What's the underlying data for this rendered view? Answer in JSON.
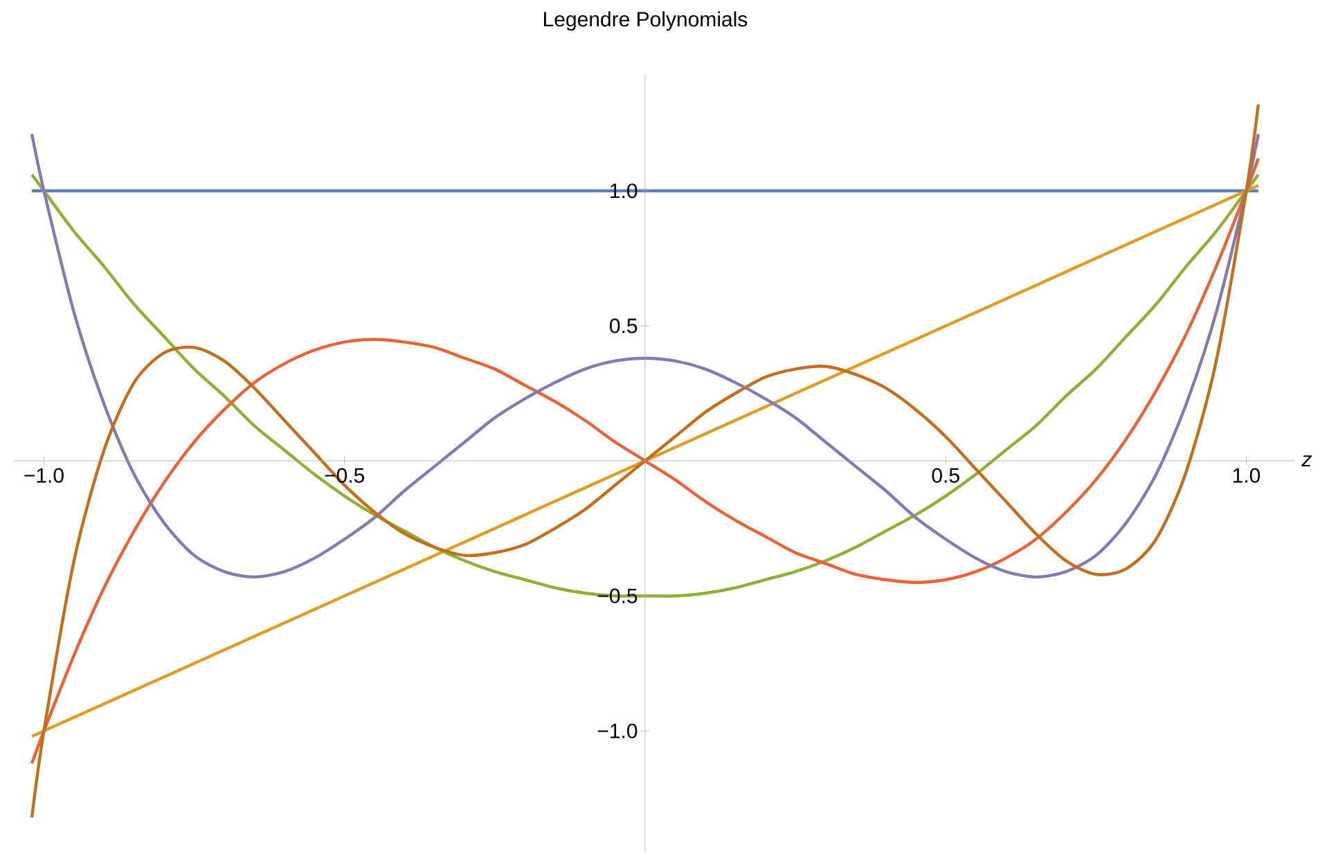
{
  "chart_data": {
    "type": "line",
    "title": "Legendre Polynomials",
    "xlabel": "z",
    "x": [
      -1.02,
      -1,
      -0.95,
      -0.9,
      -0.85,
      -0.8,
      -0.75,
      -0.7,
      -0.65,
      -0.6,
      -0.55,
      -0.5,
      -0.45,
      -0.4,
      -0.35,
      -0.3,
      -0.25,
      -0.2,
      -0.15,
      -0.1,
      -0.05,
      0,
      0.05,
      0.1,
      0.15,
      0.2,
      0.25,
      0.3,
      0.35,
      0.4,
      0.45,
      0.5,
      0.55,
      0.6,
      0.65,
      0.7,
      0.75,
      0.8,
      0.85,
      0.9,
      0.95,
      1,
      1.02
    ],
    "series": [
      {
        "color": "#5e81b5",
        "values": [
          1,
          1,
          1,
          1,
          1,
          1,
          1,
          1,
          1,
          1,
          1,
          1,
          1,
          1,
          1,
          1,
          1,
          1,
          1,
          1,
          1,
          1,
          1,
          1,
          1,
          1,
          1,
          1,
          1,
          1,
          1,
          1,
          1,
          1,
          1,
          1,
          1,
          1,
          1,
          1,
          1,
          1,
          1
        ]
      },
      {
        "color": "#e19c24",
        "values": [
          -1.02,
          -1,
          -0.95,
          -0.9,
          -0.85,
          -0.8,
          -0.75,
          -0.7,
          -0.65,
          -0.6,
          -0.55,
          -0.5,
          -0.45,
          -0.4,
          -0.35,
          -0.3,
          -0.25,
          -0.2,
          -0.15,
          -0.1,
          -0.05,
          0,
          0.05,
          0.1,
          0.15,
          0.2,
          0.25,
          0.3,
          0.35,
          0.4,
          0.45,
          0.5,
          0.55,
          0.6,
          0.65,
          0.7,
          0.75,
          0.8,
          0.85,
          0.9,
          0.95,
          1,
          1.02
        ]
      },
      {
        "color": "#8fb032",
        "values": [
          1.06,
          1,
          0.85,
          0.72,
          0.58,
          0.46,
          0.34,
          0.24,
          0.13,
          0.04,
          -0.05,
          -0.13,
          -0.2,
          -0.26,
          -0.32,
          -0.37,
          -0.41,
          -0.44,
          -0.47,
          -0.49,
          -0.5,
          -0.5,
          -0.5,
          -0.49,
          -0.47,
          -0.44,
          -0.41,
          -0.37,
          -0.32,
          -0.26,
          -0.2,
          -0.13,
          -0.05,
          0.04,
          0.13,
          0.24,
          0.34,
          0.46,
          0.58,
          0.72,
          0.85,
          1,
          1.06
        ]
      },
      {
        "color": "#eb6235",
        "values": [
          -1.12,
          -1,
          -0.72,
          -0.47,
          -0.26,
          -0.08,
          0.07,
          0.19,
          0.29,
          0.36,
          0.41,
          0.44,
          0.45,
          0.44,
          0.42,
          0.38,
          0.34,
          0.28,
          0.22,
          0.15,
          0.07,
          0,
          -0.07,
          -0.15,
          -0.22,
          -0.28,
          -0.34,
          -0.38,
          -0.42,
          -0.44,
          -0.45,
          -0.44,
          -0.41,
          -0.36,
          -0.29,
          -0.19,
          -0.07,
          0.08,
          0.26,
          0.47,
          0.72,
          1,
          1.12
        ]
      },
      {
        "color": "#8778b3",
        "values": [
          1.21,
          1,
          0.55,
          0.21,
          -0.05,
          -0.23,
          -0.35,
          -0.41,
          -0.43,
          -0.41,
          -0.36,
          -0.29,
          -0.21,
          -0.11,
          -0.02,
          0.07,
          0.16,
          0.23,
          0.29,
          0.34,
          0.37,
          0.38,
          0.37,
          0.34,
          0.29,
          0.23,
          0.16,
          0.07,
          -0.02,
          -0.11,
          -0.21,
          -0.29,
          -0.36,
          -0.41,
          -0.43,
          -0.41,
          -0.35,
          -0.23,
          -0.05,
          0.21,
          0.55,
          1,
          1.21
        ]
      },
      {
        "color": "#c56e1a",
        "values": [
          -1.32,
          -1,
          -0.37,
          0.04,
          0.29,
          0.4,
          0.42,
          0.37,
          0.27,
          0.15,
          0.03,
          -0.09,
          -0.19,
          -0.27,
          -0.32,
          -0.35,
          -0.34,
          -0.31,
          -0.25,
          -0.18,
          -0.09,
          0,
          0.09,
          0.18,
          0.25,
          0.31,
          0.34,
          0.35,
          0.32,
          0.27,
          0.19,
          0.09,
          -0.03,
          -0.15,
          -0.27,
          -0.37,
          -0.42,
          -0.4,
          -0.29,
          -0.04,
          0.37,
          1,
          1.32
        ]
      }
    ],
    "xlim": [
      -1.05,
      1.08
    ],
    "ylim": [
      -1.45,
      1.43
    ],
    "xticks": [
      {
        "value": -1,
        "label": "−1.0"
      },
      {
        "value": -0.5,
        "label": "−0.5"
      },
      {
        "value": 0.5,
        "label": "0.5"
      },
      {
        "value": 1,
        "label": "1.0"
      }
    ],
    "yticks": [
      {
        "value": -1,
        "label": "−1.0"
      },
      {
        "value": -0.5,
        "label": "−0.5"
      },
      {
        "value": 0.5,
        "label": "0.5"
      },
      {
        "value": 1,
        "label": "1.0"
      }
    ],
    "grid": false,
    "marker": "none",
    "line_style": "solid"
  }
}
